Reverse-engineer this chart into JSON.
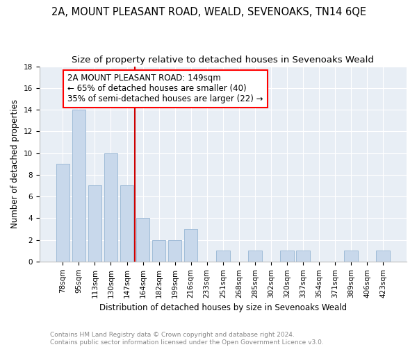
{
  "title": "2A, MOUNT PLEASANT ROAD, WEALD, SEVENOAKS, TN14 6QE",
  "subtitle": "Size of property relative to detached houses in Sevenoaks Weald",
  "xlabel": "Distribution of detached houses by size in Sevenoaks Weald",
  "ylabel": "Number of detached properties",
  "bar_labels": [
    "78sqm",
    "95sqm",
    "113sqm",
    "130sqm",
    "147sqm",
    "164sqm",
    "182sqm",
    "199sqm",
    "216sqm",
    "233sqm",
    "251sqm",
    "268sqm",
    "285sqm",
    "302sqm",
    "320sqm",
    "337sqm",
    "354sqm",
    "371sqm",
    "389sqm",
    "406sqm",
    "423sqm"
  ],
  "bar_values": [
    9,
    14,
    7,
    10,
    7,
    4,
    2,
    2,
    3,
    0,
    1,
    0,
    1,
    0,
    1,
    1,
    0,
    0,
    1,
    0,
    1
  ],
  "bar_color": "#c8d8eb",
  "bar_edge_color": "#a0bcd8",
  "red_line_index": 4.5,
  "annotation_title": "2A MOUNT PLEASANT ROAD: 149sqm",
  "annotation_line1": "← 65% of detached houses are smaller (40)",
  "annotation_line2": "35% of semi-detached houses are larger (22) →",
  "vline_color": "#cc0000",
  "ylim": [
    0,
    18
  ],
  "yticks": [
    0,
    2,
    4,
    6,
    8,
    10,
    12,
    14,
    16,
    18
  ],
  "footer_line1": "Contains HM Land Registry data © Crown copyright and database right 2024.",
  "footer_line2": "Contains public sector information licensed under the Open Government Licence v3.0.",
  "fig_bg_color": "#ffffff",
  "plot_bg_color": "#e8eef5",
  "title_fontsize": 10.5,
  "subtitle_fontsize": 9.5,
  "annot_fontsize": 8.5,
  "axis_label_fontsize": 8.5,
  "tick_fontsize": 7.5,
  "footer_fontsize": 6.5
}
